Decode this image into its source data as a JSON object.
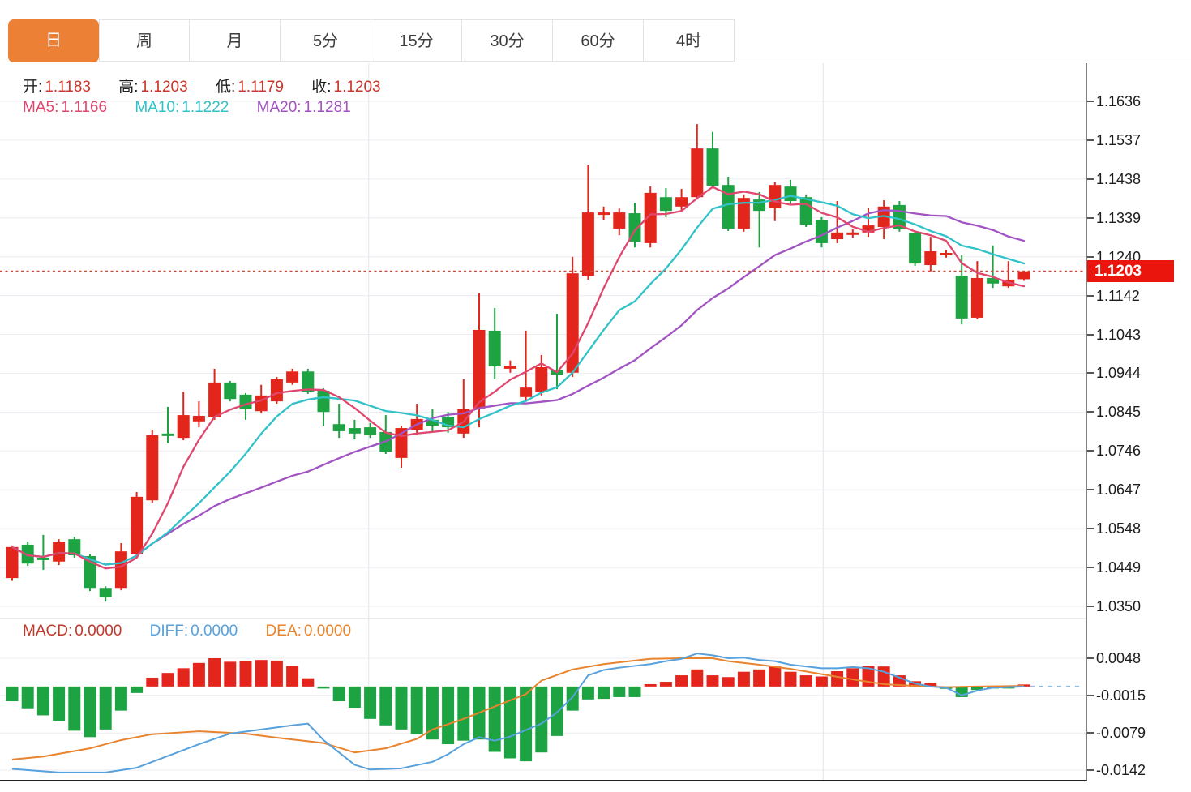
{
  "tabs": {
    "items": [
      {
        "label": "日",
        "active": true
      },
      {
        "label": "周",
        "active": false
      },
      {
        "label": "月",
        "active": false
      },
      {
        "label": "5分",
        "active": false
      },
      {
        "label": "15分",
        "active": false
      },
      {
        "label": "30分",
        "active": false
      },
      {
        "label": "60分",
        "active": false
      },
      {
        "label": "4时",
        "active": false
      }
    ]
  },
  "legend": {
    "ohlc": {
      "items": [
        {
          "label": "开:",
          "value": "1.1183"
        },
        {
          "label": "高:",
          "value": "1.1203"
        },
        {
          "label": "低:",
          "value": "1.1179"
        },
        {
          "label": "收:",
          "value": "1.1203"
        }
      ]
    },
    "ma": {
      "items": [
        {
          "label": "MA5:",
          "value": "1.1166"
        },
        {
          "label": "MA10:",
          "value": "1.1222"
        },
        {
          "label": "MA20:",
          "value": "1.1281"
        }
      ]
    },
    "macd": {
      "items": [
        {
          "label": "MACD:",
          "value": "0.0000"
        },
        {
          "label": "DIFF:",
          "value": "0.0000"
        },
        {
          "label": "DEA:",
          "value": "0.0000"
        }
      ]
    }
  },
  "colors": {
    "up": "#e3261b",
    "down": "#1da342",
    "ma5": "#e0476f",
    "ma10": "#2fc2c8",
    "ma20": "#a254c2",
    "diff": "#57a1dd",
    "dea": "#e8832e",
    "legend_label": "#1f1f1f",
    "ohlc_value": "#cb352a",
    "macd_value": "#c0392b",
    "price_line": "#cf4937",
    "price_tag_bg": "#ea150d",
    "price_tag_text": "#ffffff",
    "tab_active_bg": "#ec8035",
    "tab_active_text": "#ffffff",
    "tab_text": "#3d3d3d",
    "axis_text": "#1c1c1c",
    "grid": "#ececf2",
    "panel_divider": "#d9d9de",
    "axis_line": "#4a4a4a",
    "bottom_line": "#222222"
  },
  "chart_data": {
    "type": "candlestick",
    "timeframe": "日",
    "title": "",
    "last_price": 1.1203,
    "price_line": {
      "value": 1.1203,
      "label": "1.1203"
    },
    "price_axis": {
      "top_value": 1.1636,
      "bottom_value": 1.035,
      "tick_labels": [
        "1.1636",
        "1.1537",
        "1.1438",
        "1.1339",
        "1.1240",
        "1.1142",
        "1.1043",
        "1.0944",
        "1.0845",
        "1.0746",
        "1.0647",
        "1.0548",
        "1.0449",
        "1.0350"
      ]
    },
    "vertical_gridline_indices": [
      22.9,
      52.1
    ],
    "moving_averages": [
      {
        "name": "MA5",
        "period": 5,
        "last": 1.1166,
        "color_key": "ma5"
      },
      {
        "name": "MA10",
        "period": 10,
        "last": 1.1222,
        "color_key": "ma10"
      },
      {
        "name": "MA20",
        "period": 20,
        "last": 1.1281,
        "color_key": "ma20"
      }
    ],
    "candles_format": [
      "open",
      "high",
      "low",
      "close"
    ],
    "candles": [
      [
        1.0422,
        1.0505,
        1.0415,
        1.0501
      ],
      [
        1.0507,
        1.0515,
        1.0453,
        1.0459
      ],
      [
        1.0474,
        1.0532,
        1.0443,
        1.0468
      ],
      [
        1.0464,
        1.0521,
        1.0455,
        1.0515
      ],
      [
        1.0521,
        1.0527,
        1.0474,
        1.048
      ],
      [
        1.0478,
        1.0482,
        1.0389,
        1.0397
      ],
      [
        1.0397,
        1.0401,
        1.0362,
        1.0373
      ],
      [
        1.0397,
        1.0511,
        1.0391,
        1.049
      ],
      [
        1.0484,
        1.0641,
        1.0476,
        1.0629
      ],
      [
        1.062,
        1.08,
        1.0614,
        1.0786
      ],
      [
        1.079,
        1.0858,
        1.0765,
        1.0784
      ],
      [
        1.0779,
        1.0897,
        1.0773,
        1.0837
      ],
      [
        1.0821,
        1.0872,
        1.0806,
        1.0835
      ],
      [
        1.0831,
        1.0955,
        1.0825,
        1.092
      ],
      [
        1.092,
        1.0924,
        1.0872,
        1.0878
      ],
      [
        1.0889,
        1.0893,
        1.0825,
        1.0852
      ],
      [
        1.0847,
        1.0914,
        1.0841,
        1.0887
      ],
      [
        1.0872,
        1.0934,
        1.0866,
        1.0928
      ],
      [
        1.092,
        1.0955,
        1.0914,
        1.0948
      ],
      [
        1.0948,
        1.0955,
        1.0891,
        1.0897
      ],
      [
        1.0899,
        1.0905,
        1.081,
        1.0845
      ],
      [
        1.0814,
        1.0866,
        1.0779,
        1.0796
      ],
      [
        1.0804,
        1.0825,
        1.0775,
        1.079
      ],
      [
        1.0806,
        1.0817,
        1.0779,
        1.0786
      ],
      [
        1.0794,
        1.0837,
        1.0738,
        1.0744
      ],
      [
        1.0728,
        1.081,
        1.0703,
        1.0804
      ],
      [
        1.08,
        1.0866,
        1.0786,
        1.0827
      ],
      [
        1.0825,
        1.0852,
        1.0796,
        1.081
      ],
      [
        1.0831,
        1.0845,
        1.0792,
        1.0806
      ],
      [
        1.079,
        1.0928,
        1.0779,
        1.0852
      ],
      [
        1.0854,
        1.1147,
        1.0806,
        1.1054
      ],
      [
        1.1052,
        1.111,
        1.0928,
        1.0961
      ],
      [
        1.0955,
        1.0976,
        1.0945,
        1.0963
      ],
      [
        1.0883,
        1.1052,
        1.0876,
        1.0907
      ],
      [
        1.0897,
        1.099,
        1.0887,
        1.0959
      ],
      [
        1.0951,
        1.1095,
        1.0903,
        1.094
      ],
      [
        1.0945,
        1.124,
        1.0934,
        1.1198
      ],
      [
        1.1192,
        1.1475,
        1.1182,
        1.1353
      ],
      [
        1.1349,
        1.1368,
        1.1333,
        1.1353
      ],
      [
        1.1312,
        1.1363,
        1.1295,
        1.1353
      ],
      [
        1.1351,
        1.1378,
        1.1264,
        1.1279
      ],
      [
        1.1275,
        1.1419,
        1.1264,
        1.1403
      ],
      [
        1.1392,
        1.1415,
        1.1341,
        1.1357
      ],
      [
        1.1368,
        1.1413,
        1.1357,
        1.1392
      ],
      [
        1.1392,
        1.1578,
        1.1386,
        1.1516
      ],
      [
        1.1516,
        1.1558,
        1.1415,
        1.1421
      ],
      [
        1.1423,
        1.1444,
        1.1306,
        1.1312
      ],
      [
        1.1312,
        1.1399,
        1.1304,
        1.139
      ],
      [
        1.1386,
        1.1405,
        1.1264,
        1.1357
      ],
      [
        1.1364,
        1.143,
        1.1331,
        1.1423
      ],
      [
        1.1419,
        1.1436,
        1.1372,
        1.1382
      ],
      [
        1.1392,
        1.1399,
        1.1316,
        1.1322
      ],
      [
        1.1333,
        1.1341,
        1.1264,
        1.1275
      ],
      [
        1.1285,
        1.1382,
        1.1275,
        1.1302
      ],
      [
        1.1298,
        1.131,
        1.1289,
        1.1302
      ],
      [
        1.1302,
        1.1364,
        1.1291,
        1.132
      ],
      [
        1.1316,
        1.1384,
        1.1285,
        1.1368
      ],
      [
        1.1372,
        1.1382,
        1.1304,
        1.131
      ],
      [
        1.13,
        1.1306,
        1.1217,
        1.1223
      ],
      [
        1.1219,
        1.1291,
        1.1203,
        1.1254
      ],
      [
        1.1246,
        1.1258,
        1.1238,
        1.125
      ],
      [
        1.1192,
        1.1244,
        1.1068,
        1.1083
      ],
      [
        1.1085,
        1.1229,
        1.1081,
        1.1186
      ],
      [
        1.1186,
        1.1269,
        1.1161,
        1.1172
      ],
      [
        1.1165,
        1.1229,
        1.1161,
        1.1182
      ],
      [
        1.1183,
        1.1203,
        1.1179,
        1.1203
      ]
    ],
    "macd": {
      "axis_tick_values": [
        0.0048,
        -0.0015,
        -0.0079,
        -0.0142
      ],
      "axis_tick_labels": [
        "0.0048",
        "-0.0015",
        "-0.0079",
        "-0.0142"
      ],
      "histogram": [
        -0.0025,
        -0.0037,
        -0.0049,
        -0.0058,
        -0.0075,
        -0.0086,
        -0.0073,
        -0.0041,
        -0.0011,
        0.0015,
        0.0023,
        0.0031,
        0.004,
        0.0048,
        0.0042,
        0.0043,
        0.0045,
        0.0044,
        0.0035,
        0.0014,
        -0.0002,
        -0.0025,
        -0.0036,
        -0.0055,
        -0.0066,
        -0.0073,
        -0.0081,
        -0.009,
        -0.0098,
        -0.0092,
        -0.009,
        -0.0111,
        -0.0122,
        -0.0127,
        -0.0112,
        -0.0084,
        -0.0041,
        -0.0022,
        -0.0021,
        -0.0018,
        -0.0018,
        0.0004,
        0.0008,
        0.0019,
        0.0029,
        0.0019,
        0.0016,
        0.0025,
        0.0029,
        0.0034,
        0.0025,
        0.0019,
        0.0017,
        0.0026,
        0.0031,
        0.0035,
        0.0034,
        0.0019,
        0.0009,
        0.0006,
        -0.0004,
        -0.0018,
        -0.0006,
        -0.0003,
        -0.0001,
        0.0
      ],
      "diff_points": [
        [
          0,
          -0.014
        ],
        [
          3,
          -0.0146
        ],
        [
          6,
          -0.0146
        ],
        [
          8,
          -0.0138
        ],
        [
          10,
          -0.0118
        ],
        [
          12,
          -0.0098
        ],
        [
          14,
          -0.008
        ],
        [
          16,
          -0.0073
        ],
        [
          18,
          -0.0066
        ],
        [
          19,
          -0.0063
        ],
        [
          20,
          -0.0091
        ],
        [
          21,
          -0.0112
        ],
        [
          22,
          -0.0133
        ],
        [
          23,
          -0.0141
        ],
        [
          25,
          -0.0139
        ],
        [
          27,
          -0.0128
        ],
        [
          28,
          -0.0115
        ],
        [
          29,
          -0.0098
        ],
        [
          30,
          -0.0086
        ],
        [
          31,
          -0.0092
        ],
        [
          32,
          -0.0085
        ],
        [
          33,
          -0.0074
        ],
        [
          34,
          -0.0063
        ],
        [
          35,
          -0.0044
        ],
        [
          36,
          -0.0018
        ],
        [
          37,
          0.0019
        ],
        [
          38,
          0.0028
        ],
        [
          39,
          0.0032
        ],
        [
          40,
          0.0035
        ],
        [
          41,
          0.0038
        ],
        [
          42,
          0.0043
        ],
        [
          43,
          0.0047
        ],
        [
          44,
          0.0056
        ],
        [
          45,
          0.0053
        ],
        [
          46,
          0.0048
        ],
        [
          47,
          0.0049
        ],
        [
          48,
          0.0045
        ],
        [
          49,
          0.0043
        ],
        [
          50,
          0.0037
        ],
        [
          51,
          0.0034
        ],
        [
          52,
          0.0031
        ],
        [
          53,
          0.0031
        ],
        [
          54,
          0.0033
        ],
        [
          55,
          0.0031
        ],
        [
          56,
          0.0025
        ],
        [
          57,
          0.0015
        ],
        [
          58,
          0.0005
        ],
        [
          59,
          0.0
        ],
        [
          60,
          -0.0002
        ],
        [
          61,
          -0.0015
        ],
        [
          62,
          -0.0007
        ],
        [
          63,
          -0.0002
        ],
        [
          64,
          -0.0001
        ],
        [
          65,
          0.0
        ]
      ],
      "dea_points": [
        [
          0,
          -0.0124
        ],
        [
          2,
          -0.0119
        ],
        [
          5,
          -0.0105
        ],
        [
          7,
          -0.0091
        ],
        [
          9,
          -0.0081
        ],
        [
          12,
          -0.0076
        ],
        [
          15,
          -0.008
        ],
        [
          17,
          -0.0087
        ],
        [
          20,
          -0.0096
        ],
        [
          22,
          -0.0112
        ],
        [
          24,
          -0.0105
        ],
        [
          26,
          -0.0089
        ],
        [
          27,
          -0.0073
        ],
        [
          29,
          -0.0055
        ],
        [
          31,
          -0.0034
        ],
        [
          33,
          -0.0013
        ],
        [
          34,
          0.001
        ],
        [
          36,
          0.0029
        ],
        [
          38,
          0.0038
        ],
        [
          40,
          0.0044
        ],
        [
          41,
          0.0047
        ],
        [
          43,
          0.0048
        ],
        [
          45,
          0.0048
        ],
        [
          46,
          0.0043
        ],
        [
          48,
          0.0037
        ],
        [
          50,
          0.003
        ],
        [
          52,
          0.0021
        ],
        [
          54,
          0.0012
        ],
        [
          56,
          0.0004
        ],
        [
          58,
          0.0001
        ],
        [
          60,
          -0.0001
        ],
        [
          62,
          0.0
        ],
        [
          65,
          0.0001
        ]
      ],
      "zero_projection_value": 0
    }
  }
}
